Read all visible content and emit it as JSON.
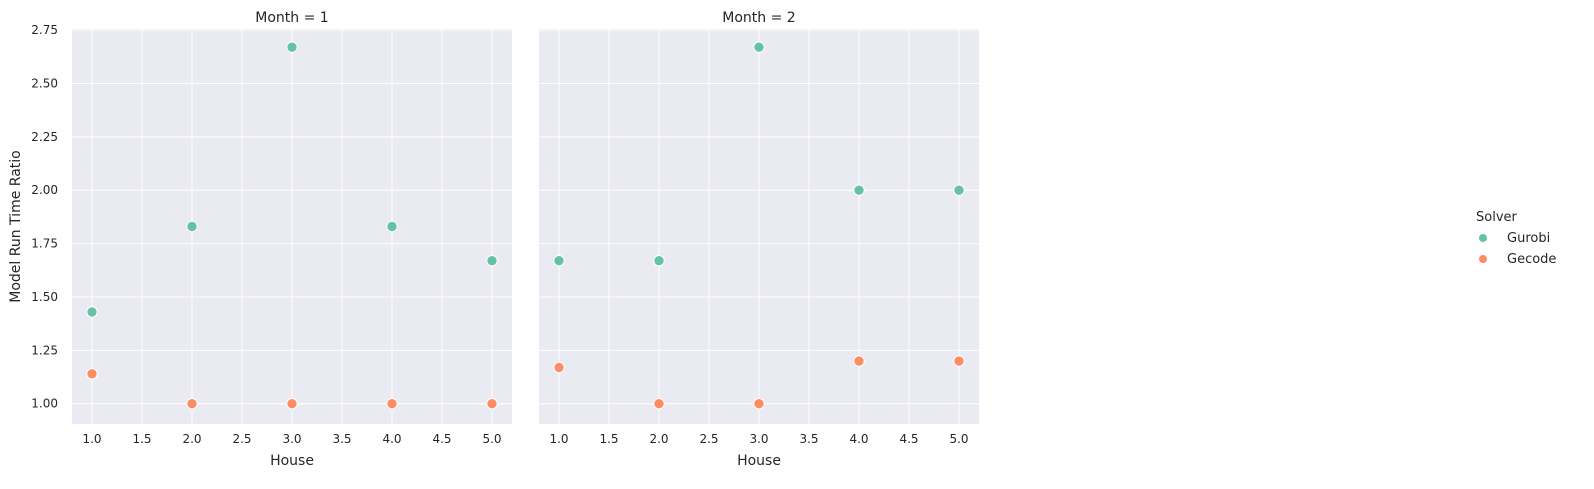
{
  "chart_data": {
    "type": "scatter",
    "style": "seaborn darkgrid",
    "xlabel": "House",
    "ylabel": "Model Run Time Ratio",
    "xlim": [
      0.8,
      5.2
    ],
    "ylim": [
      0.905,
      2.755
    ],
    "xticks": [
      "1.0",
      "1.5",
      "2.0",
      "2.5",
      "3.0",
      "3.5",
      "4.0",
      "4.5",
      "5.0"
    ],
    "yticks": [
      "1.00",
      "1.25",
      "1.50",
      "1.75",
      "2.00",
      "2.25",
      "2.50",
      "2.75"
    ],
    "grid": true,
    "legend": {
      "title": "Solver",
      "placement": "right",
      "entries": [
        {
          "name": "Gurobi",
          "color": "#66c2a5"
        },
        {
          "name": "Gecode",
          "color": "#fc8d62"
        }
      ]
    },
    "facets": [
      {
        "title": "Month = 1",
        "series": [
          {
            "name": "Gurobi",
            "x": [
              1,
              2,
              3,
              4,
              5
            ],
            "y": [
              1.43,
              1.83,
              2.67,
              1.83,
              1.67
            ]
          },
          {
            "name": "Gecode",
            "x": [
              1,
              2,
              3,
              4,
              5
            ],
            "y": [
              1.14,
              1.0,
              1.0,
              1.0,
              1.0
            ]
          }
        ]
      },
      {
        "title": "Month = 2",
        "series": [
          {
            "name": "Gurobi",
            "x": [
              1,
              2,
              3,
              4,
              5
            ],
            "y": [
              1.67,
              1.67,
              2.67,
              2.0,
              2.0
            ]
          },
          {
            "name": "Gecode",
            "x": [
              1,
              2,
              3,
              4,
              5
            ],
            "y": [
              1.17,
              1.0,
              1.0,
              1.2,
              1.2
            ]
          }
        ]
      }
    ]
  },
  "colors": {
    "panel_bg": "#eaeaf2",
    "grid": "#ffffff",
    "text": "#262626"
  }
}
